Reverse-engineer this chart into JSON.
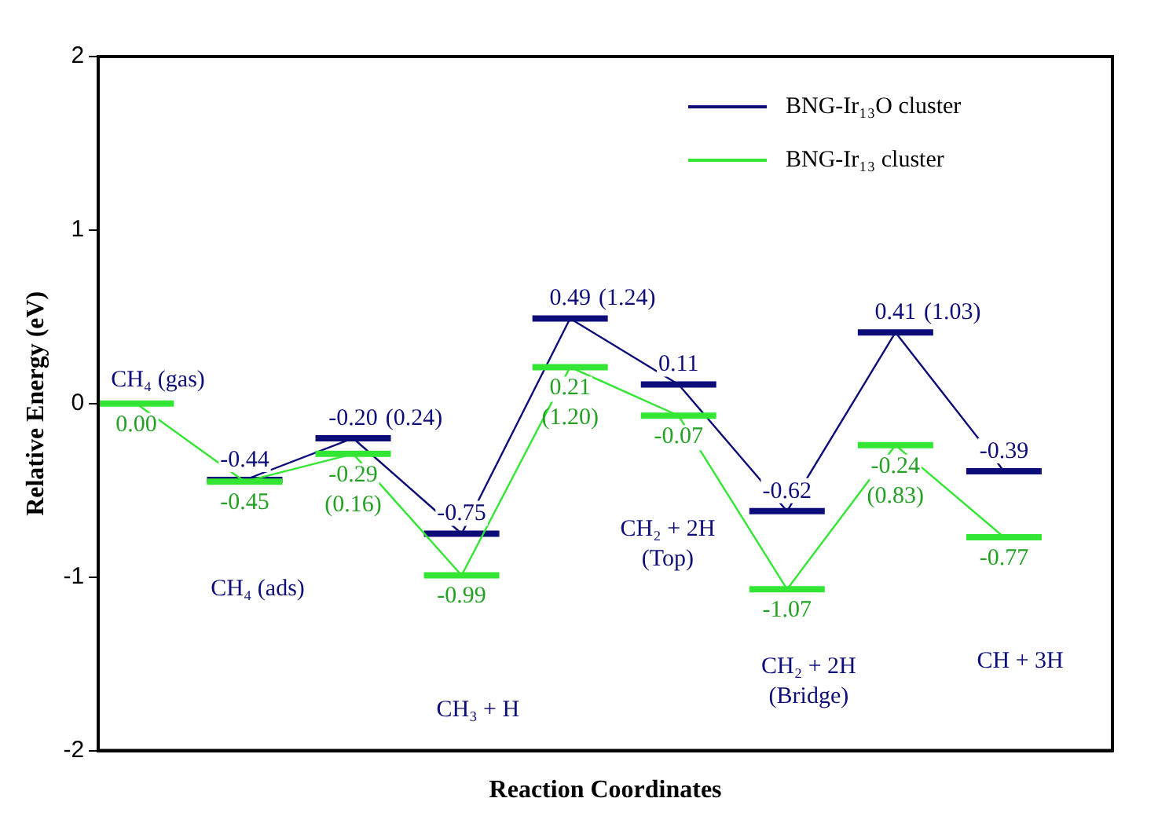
{
  "chart_data": {
    "type": "line",
    "categories": [
      null,
      null,
      null,
      null,
      null,
      null,
      null,
      null,
      null
    ],
    "ylim": [
      -2,
      2
    ],
    "yticks": [
      -2,
      -1,
      0,
      1,
      2
    ],
    "tick_labels": "y",
    "grid": false,
    "legend": "top right",
    "xlabel": "Reaction Coordinates",
    "ylabel": "Relative Energy (eV)",
    "series": [
      {
        "name": "BNG-Ir₁₃O cluster",
        "color": "#0d0d7a",
        "values": [
          null,
          -0.44,
          -0.2,
          -0.75,
          0.49,
          0.11,
          -0.62,
          0.41,
          -0.39
        ],
        "value_labels": [
          null,
          "-0.44",
          "-0.20",
          "-0.75",
          "0.49",
          "0.11",
          "-0.62",
          "0.41",
          "-0.39"
        ]
      },
      {
        "name": "BNG-Ir₁₃ cluster",
        "color": "#33e633",
        "values": [
          0,
          -0.45,
          -0.29,
          -0.99,
          0.21,
          -0.07,
          -1.07,
          -0.24,
          -0.77
        ],
        "value_labels": [
          "0.00",
          "-0.45",
          "-0.29",
          "-0.99",
          "0.21",
          "-0.07",
          "-1.07",
          "-0.24",
          "-0.77"
        ]
      }
    ],
    "annotations": [
      "CH₄ (gas)",
      "CH₄ (ads)",
      "CH₃ + H",
      "CH₂ + 2H\n(Top)",
      "CH₂ + 2H\n(Bridge)",
      "CH + 3H",
      "(0.24)",
      "(1.24)",
      "(1.03)",
      "(0.16)",
      "(1.20)",
      "(0.83)"
    ]
  }
}
